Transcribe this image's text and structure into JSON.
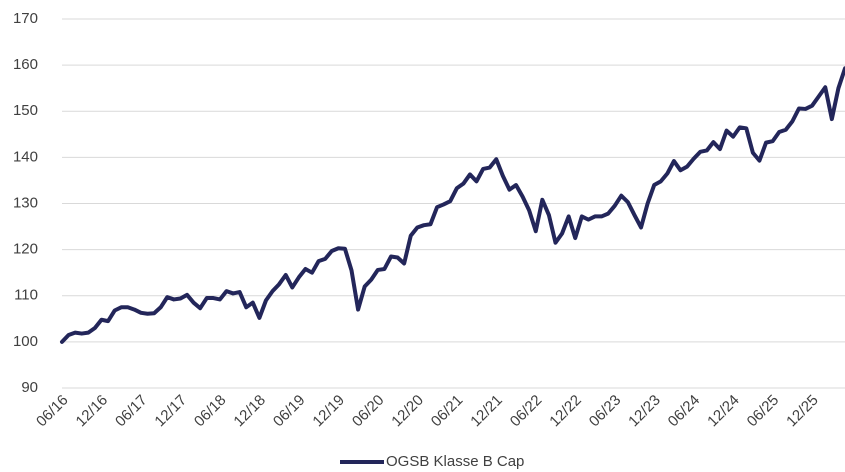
{
  "chart_data": {
    "type": "line",
    "categories": [
      "06/16",
      null,
      null,
      null,
      null,
      null,
      "12/16",
      null,
      null,
      null,
      null,
      null,
      "06/17",
      null,
      null,
      null,
      null,
      null,
      "12/17",
      null,
      null,
      null,
      null,
      null,
      "06/18",
      null,
      null,
      null,
      null,
      null,
      "12/18",
      null,
      null,
      null,
      null,
      null,
      "06/19",
      null,
      null,
      null,
      null,
      null,
      "12/19",
      null,
      null,
      null,
      null,
      null,
      "06/20",
      null,
      null,
      null,
      null,
      null,
      "12/20",
      null,
      null,
      null,
      null,
      null,
      "06/21",
      null,
      null,
      null,
      null,
      null,
      "12/21",
      null,
      null,
      null,
      null,
      null,
      "06/22",
      null,
      null,
      null,
      null,
      null,
      "12/22",
      null,
      null,
      null,
      null,
      null,
      "06/23",
      null,
      null,
      null,
      null,
      null,
      "12/23",
      null,
      null,
      null,
      null,
      null,
      "06/24",
      null,
      null,
      null,
      null,
      null,
      "12/24",
      null,
      null,
      null,
      null,
      null,
      "06/25",
      null,
      null,
      null,
      null,
      null,
      "12/25",
      null,
      null,
      null,
      null,
      null
    ],
    "series": [
      {
        "name": "OGSB Klasse B Cap",
        "color": "#23265a",
        "values": [
          100,
          101.5,
          102,
          101.8,
          102,
          103,
          104.8,
          104.5,
          106.8,
          107.5,
          107.5,
          107,
          106.3,
          106.1,
          106.2,
          107.5,
          109.7,
          109.2,
          109.4,
          110.2,
          108.5,
          107.3,
          109.5,
          109.5,
          109.2,
          111,
          110.5,
          110.8,
          107.5,
          108.5,
          105.2,
          109,
          111,
          112.5,
          114.5,
          111.8,
          114,
          115.8,
          115,
          117.5,
          118,
          119.7,
          120.3,
          120.2,
          115.5,
          107,
          112,
          113.5,
          115.6,
          115.8,
          118.5,
          118.3,
          117,
          123,
          124.8,
          125.3,
          125.5,
          129.2,
          129.8,
          130.5,
          133.3,
          134.3,
          136.3,
          134.8,
          137.5,
          137.8,
          139.6,
          136,
          133,
          134,
          131.5,
          128.5,
          124,
          130.8,
          127.5,
          121.5,
          123.5,
          127.2,
          122.5,
          127.2,
          126.5,
          127.2,
          127.2,
          127.8,
          129.5,
          131.7,
          130.3,
          127.5,
          124.8,
          130,
          134,
          134.8,
          136.5,
          139.2,
          137.2,
          138,
          139.7,
          141.2,
          141.5,
          143.3,
          141.8,
          145.8,
          144.5,
          146.5,
          146.3,
          141,
          139.3,
          143.2,
          143.5,
          145.5,
          146,
          147.8,
          150.6,
          150.5,
          151.2,
          153.2,
          155.2,
          148.3,
          155,
          159.3
        ]
      }
    ],
    "ylim": [
      90,
      170
    ],
    "yticks": [
      90,
      100,
      110,
      120,
      130,
      140,
      150,
      160,
      170
    ],
    "grid": true
  }
}
